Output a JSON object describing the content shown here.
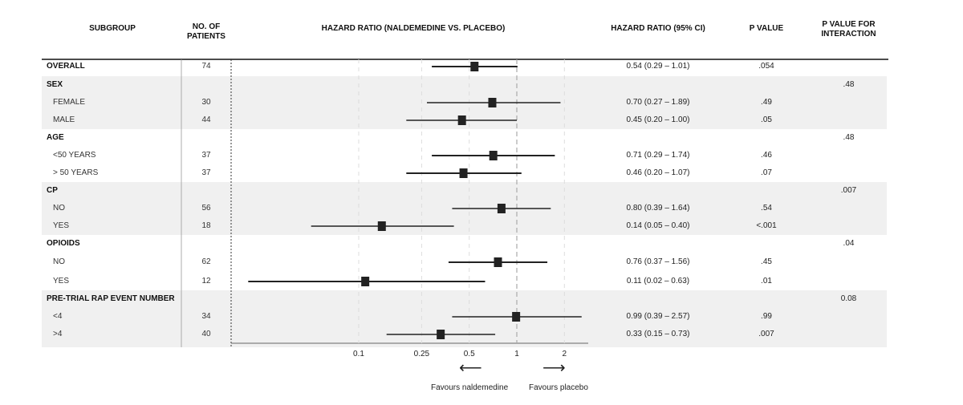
{
  "headers": {
    "subgroup": "SUBGROUP",
    "patients": [
      "NO. OF",
      "PATIENTS"
    ],
    "hazard": "HAZARD RATIO (NALDEMEDINE VS. PLACEBO)",
    "ci": "HAZARD RATIO (95% CI)",
    "pvalue": "P VALUE",
    "pinteraction": [
      "P VALUE FOR",
      "INTERACTION"
    ]
  },
  "rows": [
    {
      "label": "OVERALL",
      "type": "overall",
      "n": "74",
      "ci": "0.54 (0.29 – 1.01)",
      "p": ".054",
      "pint": "",
      "shaded": false
    },
    {
      "label": "SEX",
      "type": "group",
      "n": "",
      "ci": "",
      "p": "",
      "pint": ".48",
      "shaded": true
    },
    {
      "label": "FEMALE",
      "type": "sub",
      "n": "30",
      "ci": "0.70 (0.27 – 1.89)",
      "p": ".49",
      "pint": "",
      "shaded": true
    },
    {
      "label": "MALE",
      "type": "sub",
      "n": "44",
      "ci": "0.45 (0.20 – 1.00)",
      "p": ".05",
      "pint": "",
      "shaded": true
    },
    {
      "label": "AGE",
      "type": "group",
      "n": "",
      "ci": "",
      "p": "",
      "pint": ".48",
      "shaded": false
    },
    {
      "label": "<50 YEARS",
      "type": "sub",
      "n": "37",
      "ci": "0.71 (0.29 – 1.74)",
      "p": ".46",
      "pint": "",
      "shaded": false
    },
    {
      "label": "> 50 YEARS",
      "type": "sub",
      "n": "37",
      "ci": "0.46 (0.20 – 1.07)",
      "p": ".07",
      "pint": "",
      "shaded": false
    },
    {
      "label": "CP",
      "type": "group",
      "n": "",
      "ci": "",
      "p": "",
      "pint": ".007",
      "shaded": true
    },
    {
      "label": "NO",
      "type": "sub",
      "n": "56",
      "ci": "0.80 (0.39 – 1.64)",
      "p": ".54",
      "pint": "",
      "shaded": true
    },
    {
      "label": "YES",
      "type": "sub",
      "n": "18",
      "ci": "0.14 (0.05 – 0.40)",
      "p": "<.001",
      "pint": "",
      "shaded": true
    },
    {
      "label": "OPIOIDS",
      "type": "group",
      "n": "",
      "ci": "",
      "p": "",
      "pint": ".04",
      "shaded": false
    },
    {
      "label": "NO",
      "type": "sub",
      "n": "62",
      "ci": "0.76 (0.37 – 1.56)",
      "p": ".45",
      "pint": "",
      "shaded": false
    },
    {
      "label": "YES",
      "type": "sub",
      "n": "12",
      "ci": "0.11 (0.02 – 0.63)",
      "p": ".01",
      "pint": "",
      "shaded": false
    },
    {
      "label": "PRE-TRIAL RAP EVENT NUMBER",
      "type": "group",
      "n": "",
      "ci": "",
      "p": "",
      "pint": "0.08",
      "shaded": true
    },
    {
      "label": "<4",
      "type": "sub",
      "n": "34",
      "ci": "0.99 (0.39 – 2.57)",
      "p": ".99",
      "pint": "",
      "shaded": true
    },
    {
      "label": ">4",
      "type": "sub",
      "n": "40",
      "ci": "0.33 (0.15 – 0.73)",
      "p": ".007",
      "pint": "",
      "shaded": true
    }
  ],
  "footer": {
    "left": "Favours naldemedine",
    "right": "Favours placebo",
    "left_arrow": "⟵",
    "right_arrow": "⟶"
  },
  "chart_data": {
    "type": "forest",
    "title": "HAZARD RATIO (NALDEMEDINE VS. PLACEBO)",
    "xscale": "log",
    "xlim": [
      0.02,
      2.57
    ],
    "xticks": [
      0.1,
      0.25,
      0.5,
      1,
      2
    ],
    "xtick_labels": [
      "0.1",
      "0.25",
      "0.5",
      "1",
      "2"
    ],
    "reference_line": 1,
    "grid": "vertical dashed at ticks",
    "points": [
      {
        "hr": 0.54,
        "lo": 0.29,
        "hi": 1.01
      },
      null,
      {
        "hr": 0.7,
        "lo": 0.27,
        "hi": 1.89
      },
      {
        "hr": 0.45,
        "lo": 0.2,
        "hi": 1.0
      },
      null,
      {
        "hr": 0.71,
        "lo": 0.29,
        "hi": 1.74
      },
      {
        "hr": 0.46,
        "lo": 0.2,
        "hi": 1.07
      },
      null,
      {
        "hr": 0.8,
        "lo": 0.39,
        "hi": 1.64
      },
      {
        "hr": 0.14,
        "lo": 0.05,
        "hi": 0.4
      },
      null,
      {
        "hr": 0.76,
        "lo": 0.37,
        "hi": 1.56
      },
      {
        "hr": 0.11,
        "lo": 0.02,
        "hi": 0.63
      },
      null,
      {
        "hr": 0.99,
        "lo": 0.39,
        "hi": 2.57
      },
      {
        "hr": 0.33,
        "lo": 0.15,
        "hi": 0.73
      }
    ],
    "colors": {
      "band": "#f0f0f0",
      "marker": "#222222",
      "reference": "#aaaaaa",
      "grid": "#dddddd"
    }
  }
}
